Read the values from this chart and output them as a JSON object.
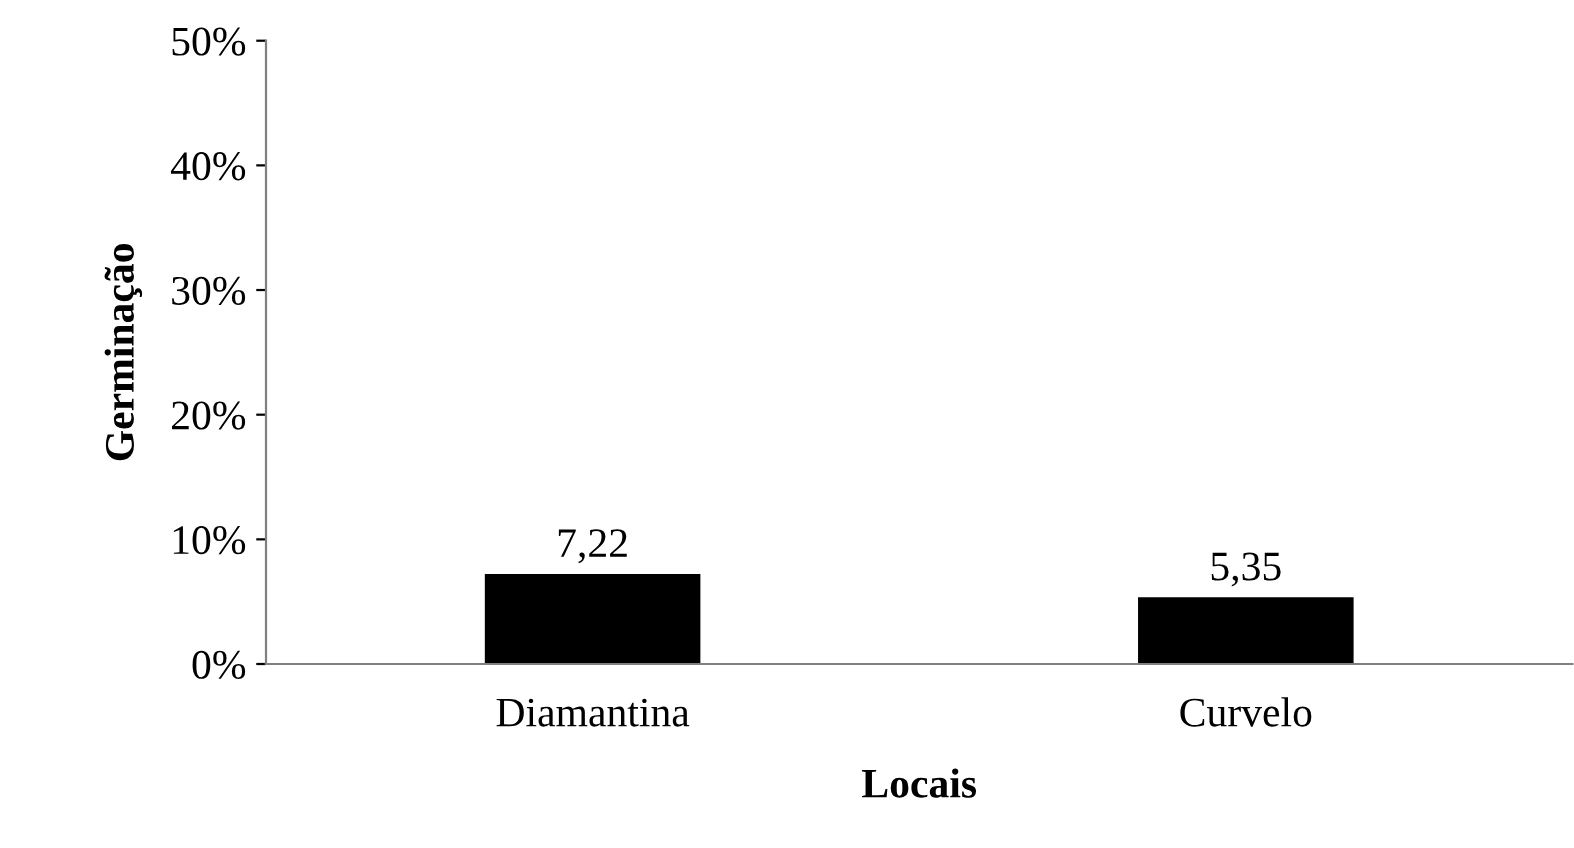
{
  "chart_data": {
    "type": "bar",
    "xlabel": "Locais",
    "ylabel": "Germinação",
    "categories": [
      "Diamantina",
      "Curvelo"
    ],
    "values": [
      7.22,
      5.35
    ],
    "color": "#000000",
    "value_labels": [
      "7,22",
      "5,35"
    ],
    "ylim": [
      0,
      50
    ],
    "yticks": [
      {
        "value": 0,
        "label": "0%"
      },
      {
        "value": 10,
        "label": "10%"
      },
      {
        "value": 20,
        "label": "20%"
      },
      {
        "value": 30,
        "label": "30%"
      },
      {
        "value": 40,
        "label": "40%"
      },
      {
        "value": 50,
        "label": "50%"
      }
    ],
    "grid": false,
    "legend": false
  }
}
